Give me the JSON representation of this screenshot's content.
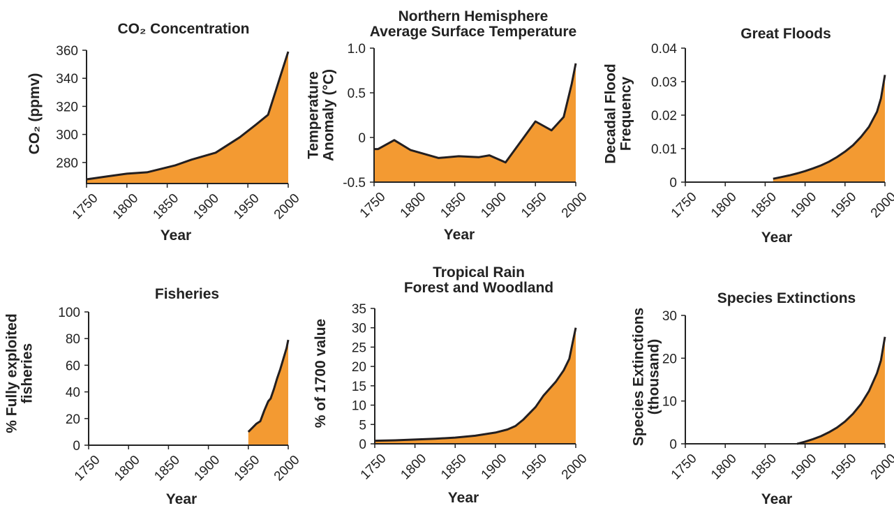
{
  "colors": {
    "fill": "#f39a32",
    "line": "#231f20",
    "text": "#222222"
  },
  "chart_data": [
    {
      "type": "area",
      "title": "CO₂ Concentration",
      "xlabel": "Year",
      "ylabel": "CO₂ (ppmv)",
      "xlim": [
        1750,
        2000
      ],
      "ylim": [
        265,
        360
      ],
      "xticks": [
        "1750",
        "1800",
        "1850",
        "1900",
        "1950",
        "2000"
      ],
      "yticks": [
        "280",
        "300",
        "320",
        "340",
        "360"
      ],
      "x": [
        1750,
        1775,
        1800,
        1825,
        1860,
        1880,
        1910,
        1940,
        1960,
        1975,
        1985,
        1990,
        2000
      ],
      "y": [
        268,
        270,
        272,
        273,
        278,
        282,
        287,
        298,
        307,
        314,
        332,
        341,
        359
      ]
    },
    {
      "type": "area",
      "title": "Northern Hemisphere Average Surface Temperature",
      "xlabel": "Year",
      "ylabel": "Temperature Anomaly (°C)",
      "xlim": [
        1750,
        2000
      ],
      "ylim": [
        -0.5,
        1.0
      ],
      "xticks": [
        "1750",
        "1800",
        "1850",
        "1900",
        "1950",
        "2000"
      ],
      "yticks": [
        "-0.5",
        "0",
        "0.5",
        "1.0"
      ],
      "x": [
        1750,
        1755,
        1775,
        1795,
        1830,
        1855,
        1880,
        1893,
        1913,
        1950,
        1970,
        1985,
        1995,
        2000
      ],
      "y": [
        -0.13,
        -0.13,
        -0.03,
        -0.14,
        -0.23,
        -0.21,
        -0.22,
        -0.2,
        -0.28,
        0.18,
        0.08,
        0.23,
        0.6,
        0.83
      ]
    },
    {
      "type": "area",
      "title": "Great Floods",
      "xlabel": "Year",
      "ylabel": "Decadal Flood Frequency",
      "xlim": [
        1750,
        2000
      ],
      "ylim": [
        0,
        0.04
      ],
      "xticks": [
        "1750",
        "1800",
        "1850",
        "1900",
        "1950",
        "2000"
      ],
      "yticks": [
        "0",
        "0.01",
        "0.02",
        "0.03",
        "0.04"
      ],
      "x": [
        1860,
        1870,
        1880,
        1890,
        1900,
        1910,
        1920,
        1930,
        1940,
        1950,
        1960,
        1970,
        1980,
        1990,
        1995,
        2000
      ],
      "y": [
        0.001,
        0.0015,
        0.002,
        0.0026,
        0.0033,
        0.0041,
        0.005,
        0.0061,
        0.0075,
        0.0091,
        0.011,
        0.0135,
        0.0165,
        0.021,
        0.025,
        0.032
      ]
    },
    {
      "type": "area",
      "title": "Fisheries",
      "xlabel": "Year",
      "ylabel": "% Fully exploited fisheries",
      "xlim": [
        1750,
        2000
      ],
      "ylim": [
        0,
        100
      ],
      "xticks": [
        "1750",
        "1800",
        "1850",
        "1900",
        "1950",
        "2000"
      ],
      "yticks": [
        "0",
        "20",
        "40",
        "60",
        "80",
        "100"
      ],
      "x": [
        1950,
        1955,
        1960,
        1965,
        1970,
        1975,
        1978,
        1982,
        1986,
        1990,
        1994,
        1998,
        2000
      ],
      "y": [
        10,
        13,
        16,
        18,
        26,
        33,
        35,
        42,
        50,
        57,
        65,
        73,
        79
      ]
    },
    {
      "type": "area",
      "title": "Tropical Rain Forest and Woodland",
      "xlabel": "Year",
      "ylabel": "% of 1700 value",
      "xlim": [
        1750,
        2000
      ],
      "ylim": [
        0,
        35
      ],
      "xticks": [
        "1750",
        "1800",
        "1850",
        "1900",
        "1950",
        "2000"
      ],
      "yticks": [
        "0",
        "5",
        "10",
        "15",
        "20",
        "25",
        "30",
        "35"
      ],
      "x": [
        1750,
        1775,
        1800,
        1825,
        1850,
        1875,
        1900,
        1915,
        1925,
        1935,
        1950,
        1960,
        1975,
        1985,
        1992,
        1997,
        2000
      ],
      "y": [
        0.8,
        0.9,
        1.1,
        1.3,
        1.6,
        2.1,
        2.9,
        3.7,
        4.6,
        6.3,
        9.5,
        12.5,
        16,
        19,
        22,
        27,
        30
      ]
    },
    {
      "type": "area",
      "title": "Species Extinctions",
      "xlabel": "Year",
      "ylabel": "Species Extinctions (thousand)",
      "xlim": [
        1750,
        2000
      ],
      "ylim": [
        0,
        30
      ],
      "xticks": [
        "1750",
        "1800",
        "1850",
        "1900",
        "1950",
        "2000"
      ],
      "yticks": [
        "0",
        "10",
        "20",
        "30"
      ],
      "x": [
        1890,
        1900,
        1910,
        1920,
        1930,
        1940,
        1950,
        1960,
        1970,
        1980,
        1990,
        1995,
        2000
      ],
      "y": [
        0,
        0.5,
        1.1,
        1.8,
        2.7,
        3.8,
        5.2,
        7,
        9.3,
        12.3,
        16.5,
        19.5,
        25
      ]
    }
  ]
}
